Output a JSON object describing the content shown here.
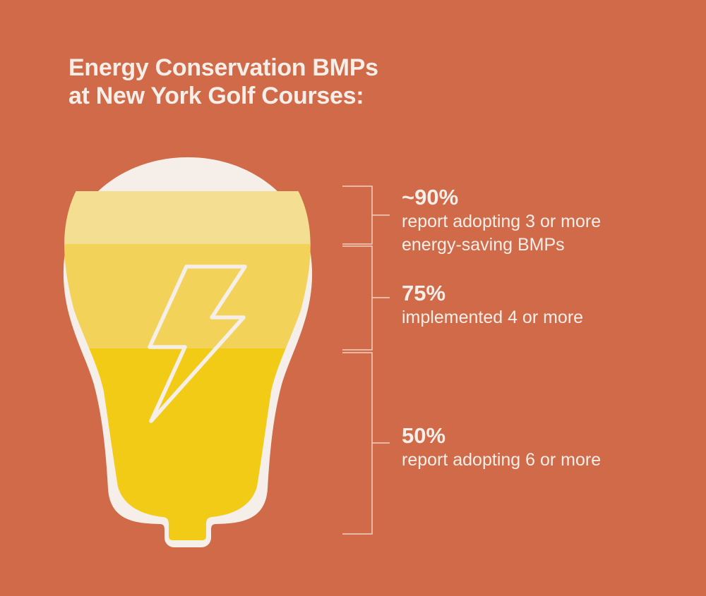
{
  "title": {
    "line1": "Energy Conservation BMPs",
    "line2": "at New York Golf Courses:"
  },
  "stats": [
    {
      "value": "~90%",
      "description_line1": "report adopting 3 or more",
      "description_line2": "energy-saving BMPs"
    },
    {
      "value": "75%",
      "description_line1": "implemented 4 or more"
    },
    {
      "value": "50%",
      "description_line1": "report adopting 6 or more"
    }
  ],
  "colors": {
    "background": "#D06A48",
    "bulb_outline": "#F6EEE8",
    "fill_top": "#F4DE92",
    "fill_middle": "#F3D25A",
    "fill_bottom": "#F2CB16",
    "bracket": "#F0D2C4",
    "text": "#F6EEE8"
  },
  "icons": {
    "bulb": "lightbulb-icon",
    "bolt": "lightning-bolt-icon"
  }
}
